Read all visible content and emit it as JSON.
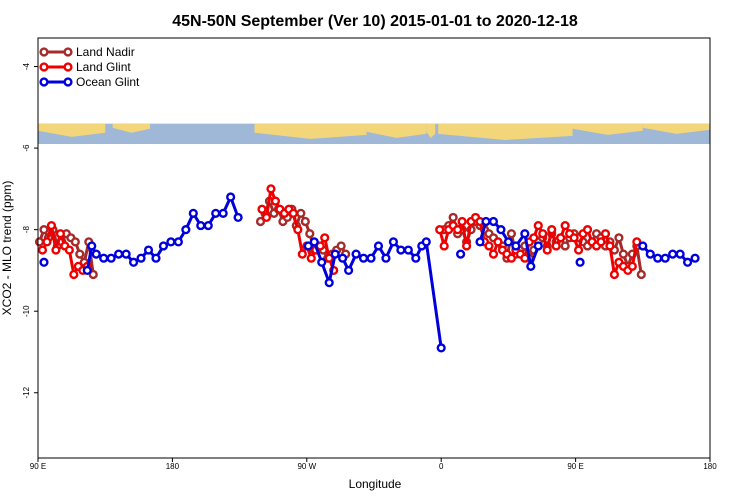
{
  "chart_data": {
    "type": "line",
    "title": "45N-50N September (Ver 10)   2015-01-01 to 2020-12-18",
    "xlabel": "Longitude",
    "ylabel": "XCO2 - MLO trend (ppm)",
    "x_ticks": [
      {
        "x": 90,
        "label": "90 E"
      },
      {
        "x": 180,
        "label": "180"
      },
      {
        "x": 270,
        "label": "90 W"
      },
      {
        "x": 360,
        "label": "0"
      },
      {
        "x": 450,
        "label": "90 E"
      },
      {
        "x": 540,
        "label": "180"
      }
    ],
    "y_ticks": [
      -4,
      -6,
      -8,
      -10,
      -12
    ],
    "xlim": [
      90,
      540
    ],
    "ylim": [
      -13.6,
      -3.3
    ],
    "map_strip": {
      "ymin": -5.9,
      "ymax": -5.4
    },
    "legend_position": "top-left",
    "series": [
      {
        "name": "Land Nadir",
        "color": "#a52a2a",
        "segments": [
          [
            {
              "x": 91,
              "y": -8.3
            },
            {
              "x": 94,
              "y": -8.0
            },
            {
              "x": 97,
              "y": -8.2
            },
            {
              "x": 100,
              "y": -8.0
            },
            {
              "x": 103,
              "y": -8.4
            },
            {
              "x": 106,
              "y": -8.3
            },
            {
              "x": 109,
              "y": -8.1
            },
            {
              "x": 112,
              "y": -8.2
            },
            {
              "x": 115,
              "y": -8.3
            },
            {
              "x": 118,
              "y": -8.6
            },
            {
              "x": 121,
              "y": -8.8
            },
            {
              "x": 124,
              "y": -8.3
            },
            {
              "x": 127,
              "y": -9.1
            }
          ],
          [
            {
              "x": 239,
              "y": -7.8
            },
            {
              "x": 242,
              "y": -7.6
            },
            {
              "x": 245,
              "y": -7.3
            },
            {
              "x": 248,
              "y": -7.6
            },
            {
              "x": 251,
              "y": -7.5
            },
            {
              "x": 254,
              "y": -7.8
            },
            {
              "x": 257,
              "y": -7.7
            },
            {
              "x": 260,
              "y": -7.5
            },
            {
              "x": 263,
              "y": -7.9
            },
            {
              "x": 266,
              "y": -7.6
            },
            {
              "x": 269,
              "y": -7.8
            },
            {
              "x": 272,
              "y": -8.1
            },
            {
              "x": 275,
              "y": -8.5
            },
            {
              "x": 278,
              "y": -8.4
            },
            {
              "x": 281,
              "y": -8.5
            },
            {
              "x": 284,
              "y": -8.7
            },
            {
              "x": 287,
              "y": -8.6
            },
            {
              "x": 290,
              "y": -8.5
            },
            {
              "x": 293,
              "y": -8.4
            },
            {
              "x": 296,
              "y": -8.6
            }
          ],
          [
            {
              "x": 362,
              "y": -8.0
            },
            {
              "x": 365,
              "y": -7.9
            },
            {
              "x": 368,
              "y": -7.7
            },
            {
              "x": 371,
              "y": -8.1
            },
            {
              "x": 374,
              "y": -8.0
            },
            {
              "x": 377,
              "y": -8.3
            },
            {
              "x": 380,
              "y": -8.0
            },
            {
              "x": 383,
              "y": -7.8
            },
            {
              "x": 386,
              "y": -7.9
            },
            {
              "x": 389,
              "y": -8.0
            },
            {
              "x": 392,
              "y": -8.1
            },
            {
              "x": 395,
              "y": -8.2
            },
            {
              "x": 398,
              "y": -8.3
            },
            {
              "x": 401,
              "y": -8.4
            },
            {
              "x": 404,
              "y": -8.7
            },
            {
              "x": 407,
              "y": -8.1
            },
            {
              "x": 410,
              "y": -8.6
            },
            {
              "x": 413,
              "y": -8.5
            },
            {
              "x": 416,
              "y": -8.4
            },
            {
              "x": 419,
              "y": -8.7
            },
            {
              "x": 422,
              "y": -8.5
            },
            {
              "x": 425,
              "y": -8.3
            },
            {
              "x": 428,
              "y": -8.2
            },
            {
              "x": 431,
              "y": -8.4
            },
            {
              "x": 434,
              "y": -8.1
            },
            {
              "x": 437,
              "y": -8.3
            },
            {
              "x": 440,
              "y": -8.2
            },
            {
              "x": 443,
              "y": -8.4
            },
            {
              "x": 446,
              "y": -8.2
            },
            {
              "x": 449,
              "y": -8.1
            },
            {
              "x": 452,
              "y": -8.2
            },
            {
              "x": 455,
              "y": -8.3
            },
            {
              "x": 458,
              "y": -8.4
            },
            {
              "x": 461,
              "y": -8.3
            },
            {
              "x": 464,
              "y": -8.1
            },
            {
              "x": 467,
              "y": -8.2
            },
            {
              "x": 470,
              "y": -8.4
            },
            {
              "x": 473,
              "y": -8.3
            },
            {
              "x": 476,
              "y": -8.5
            },
            {
              "x": 479,
              "y": -8.2
            },
            {
              "x": 482,
              "y": -8.6
            },
            {
              "x": 485,
              "y": -8.9
            },
            {
              "x": 488,
              "y": -8.6
            },
            {
              "x": 491,
              "y": -8.4
            },
            {
              "x": 494,
              "y": -9.1
            }
          ]
        ]
      },
      {
        "name": "Land Glint",
        "color": "#ee0000",
        "segments": [
          [
            {
              "x": 93,
              "y": -8.5
            },
            {
              "x": 96,
              "y": -8.3
            },
            {
              "x": 99,
              "y": -7.9
            },
            {
              "x": 102,
              "y": -8.5
            },
            {
              "x": 105,
              "y": -8.1
            },
            {
              "x": 108,
              "y": -8.4
            },
            {
              "x": 111,
              "y": -8.5
            },
            {
              "x": 114,
              "y": -9.1
            },
            {
              "x": 117,
              "y": -8.9
            },
            {
              "x": 120,
              "y": -9.0
            },
            {
              "x": 123,
              "y": -8.9
            }
          ],
          [
            {
              "x": 240,
              "y": -7.5
            },
            {
              "x": 243,
              "y": -7.7
            },
            {
              "x": 246,
              "y": -7.0
            },
            {
              "x": 249,
              "y": -7.3
            },
            {
              "x": 252,
              "y": -7.5
            },
            {
              "x": 255,
              "y": -7.6
            },
            {
              "x": 258,
              "y": -7.5
            },
            {
              "x": 261,
              "y": -7.6
            },
            {
              "x": 264,
              "y": -8.0
            },
            {
              "x": 267,
              "y": -8.6
            },
            {
              "x": 270,
              "y": -8.4
            },
            {
              "x": 273,
              "y": -8.7
            },
            {
              "x": 276,
              "y": -8.5
            },
            {
              "x": 279,
              "y": -8.4
            },
            {
              "x": 282,
              "y": -8.2
            },
            {
              "x": 285,
              "y": -8.7
            },
            {
              "x": 288,
              "y": -9.0
            }
          ],
          [
            {
              "x": 359,
              "y": -8.0
            },
            {
              "x": 362,
              "y": -8.4
            },
            {
              "x": 365,
              "y": -8.0
            },
            {
              "x": 368,
              "y": -7.9
            },
            {
              "x": 371,
              "y": -8.0
            },
            {
              "x": 374,
              "y": -7.8
            },
            {
              "x": 377,
              "y": -8.4
            },
            {
              "x": 380,
              "y": -7.8
            },
            {
              "x": 383,
              "y": -7.7
            },
            {
              "x": 386,
              "y": -7.8
            },
            {
              "x": 389,
              "y": -8.3
            },
            {
              "x": 392,
              "y": -8.4
            },
            {
              "x": 395,
              "y": -8.6
            },
            {
              "x": 398,
              "y": -8.3
            },
            {
              "x": 401,
              "y": -8.5
            },
            {
              "x": 404,
              "y": -8.6
            },
            {
              "x": 407,
              "y": -8.7
            },
            {
              "x": 410,
              "y": -8.5
            },
            {
              "x": 413,
              "y": -8.6
            },
            {
              "x": 416,
              "y": -8.7
            },
            {
              "x": 419,
              "y": -8.3
            },
            {
              "x": 422,
              "y": -8.2
            },
            {
              "x": 425,
              "y": -7.9
            },
            {
              "x": 428,
              "y": -8.1
            },
            {
              "x": 431,
              "y": -8.5
            },
            {
              "x": 434,
              "y": -8.0
            },
            {
              "x": 437,
              "y": -8.4
            },
            {
              "x": 440,
              "y": -8.2
            },
            {
              "x": 443,
              "y": -7.9
            },
            {
              "x": 446,
              "y": -8.1
            },
            {
              "x": 449,
              "y": -8.2
            },
            {
              "x": 452,
              "y": -8.5
            },
            {
              "x": 455,
              "y": -8.1
            },
            {
              "x": 458,
              "y": -8.0
            },
            {
              "x": 461,
              "y": -8.3
            },
            {
              "x": 464,
              "y": -8.4
            },
            {
              "x": 467,
              "y": -8.3
            },
            {
              "x": 470,
              "y": -8.1
            },
            {
              "x": 473,
              "y": -8.4
            },
            {
              "x": 476,
              "y": -9.1
            },
            {
              "x": 479,
              "y": -8.8
            },
            {
              "x": 482,
              "y": -8.9
            },
            {
              "x": 485,
              "y": -9.0
            },
            {
              "x": 488,
              "y": -8.9
            },
            {
              "x": 491,
              "y": -8.3
            }
          ]
        ]
      },
      {
        "name": "Ocean Glint",
        "color": "#0000dd",
        "segments": [
          [
            {
              "x": 94,
              "y": -8.8
            }
          ],
          [
            {
              "x": 123,
              "y": -9.0
            },
            {
              "x": 126,
              "y": -8.4
            },
            {
              "x": 129,
              "y": -8.6
            },
            {
              "x": 134,
              "y": -8.7
            },
            {
              "x": 139,
              "y": -8.7
            },
            {
              "x": 144,
              "y": -8.6
            },
            {
              "x": 149,
              "y": -8.6
            },
            {
              "x": 154,
              "y": -8.8
            },
            {
              "x": 159,
              "y": -8.7
            },
            {
              "x": 164,
              "y": -8.5
            },
            {
              "x": 169,
              "y": -8.7
            },
            {
              "x": 174,
              "y": -8.4
            },
            {
              "x": 179,
              "y": -8.3
            },
            {
              "x": 184,
              "y": -8.3
            },
            {
              "x": 189,
              "y": -8.0
            },
            {
              "x": 194,
              "y": -7.6
            },
            {
              "x": 199,
              "y": -7.9
            },
            {
              "x": 204,
              "y": -7.9
            },
            {
              "x": 209,
              "y": -7.6
            },
            {
              "x": 214,
              "y": -7.6
            },
            {
              "x": 219,
              "y": -7.2
            },
            {
              "x": 224,
              "y": -7.7
            }
          ],
          [
            {
              "x": 271,
              "y": -8.4
            },
            {
              "x": 275,
              "y": -8.3
            },
            {
              "x": 280,
              "y": -8.8
            },
            {
              "x": 285,
              "y": -9.3
            },
            {
              "x": 289,
              "y": -8.6
            },
            {
              "x": 294,
              "y": -8.7
            },
            {
              "x": 298,
              "y": -9.0
            },
            {
              "x": 303,
              "y": -8.6
            },
            {
              "x": 308,
              "y": -8.7
            },
            {
              "x": 313,
              "y": -8.7
            },
            {
              "x": 318,
              "y": -8.4
            },
            {
              "x": 323,
              "y": -8.7
            },
            {
              "x": 328,
              "y": -8.3
            },
            {
              "x": 333,
              "y": -8.5
            },
            {
              "x": 338,
              "y": -8.5
            },
            {
              "x": 343,
              "y": -8.7
            },
            {
              "x": 347,
              "y": -8.4
            },
            {
              "x": 350,
              "y": -8.3
            },
            {
              "x": 360,
              "y": -10.9
            }
          ],
          [
            {
              "x": 373,
              "y": -8.6
            }
          ],
          [
            {
              "x": 386,
              "y": -8.3
            },
            {
              "x": 390,
              "y": -7.8
            },
            {
              "x": 395,
              "y": -7.8
            },
            {
              "x": 400,
              "y": -8.0
            },
            {
              "x": 405,
              "y": -8.3
            },
            {
              "x": 410,
              "y": -8.4
            },
            {
              "x": 416,
              "y": -8.1
            },
            {
              "x": 420,
              "y": -8.9
            },
            {
              "x": 425,
              "y": -8.4
            }
          ],
          [
            {
              "x": 495,
              "y": -8.4
            },
            {
              "x": 500,
              "y": -8.6
            },
            {
              "x": 505,
              "y": -8.7
            },
            {
              "x": 510,
              "y": -8.7
            },
            {
              "x": 515,
              "y": -8.6
            },
            {
              "x": 520,
              "y": -8.6
            },
            {
              "x": 525,
              "y": -8.8
            },
            {
              "x": 530,
              "y": -8.7
            }
          ],
          [
            {
              "x": 453,
              "y": -8.8
            }
          ]
        ]
      }
    ]
  }
}
